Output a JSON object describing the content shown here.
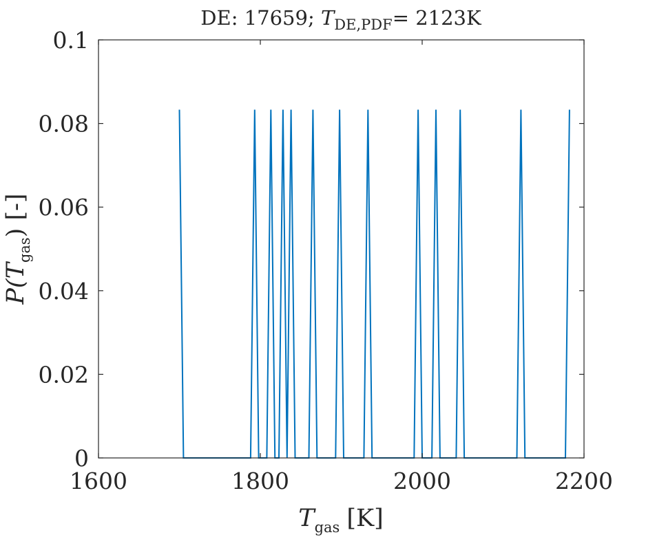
{
  "chart_data": {
    "type": "line",
    "title": {
      "prefix": "DE: 17659; ",
      "var": "T",
      "sub": "DE,PDF",
      "suffix": "= 2123K"
    },
    "xlabel": {
      "var": "T",
      "sub": "gas",
      "unit": "[K]"
    },
    "ylabel": {
      "prefix": "P(",
      "var": "T",
      "sub": "gas",
      "suffix": ") [-]"
    },
    "xlim": [
      1600,
      2200
    ],
    "ylim": [
      0,
      0.1
    ],
    "xticks": [
      1600,
      1800,
      2000,
      2200
    ],
    "xtick_labels": [
      "1600",
      "1800",
      "2000",
      "2200"
    ],
    "yticks": [
      0,
      0.02,
      0.04,
      0.06,
      0.08,
      0.1
    ],
    "ytick_labels": [
      "0",
      "0.02",
      "0.04",
      "0.06",
      "0.08",
      "0.1"
    ],
    "grid": false,
    "line_color": "#0072BD",
    "series": [
      {
        "x": [
          1700,
          1705,
          1788,
          1793,
          1798,
          1803,
          1808,
          1813,
          1818,
          1823,
          1828,
          1833,
          1838,
          1843,
          1860,
          1865,
          1870,
          1893,
          1898,
          1903,
          1928,
          1933,
          1938,
          1990,
          1995,
          2000,
          2012,
          2017,
          2022,
          2042,
          2047,
          2052,
          2117,
          2122,
          2127,
          2177,
          2182
        ],
        "y": [
          0.0833,
          0,
          0,
          0.0833,
          0,
          0,
          0,
          0.0833,
          0,
          0,
          0.0833,
          0,
          0.0833,
          0,
          0,
          0.0833,
          0,
          0,
          0.0833,
          0,
          0,
          0.0833,
          0,
          0,
          0.0833,
          0,
          0,
          0.0833,
          0,
          0,
          0.0833,
          0,
          0,
          0.0833,
          0,
          0,
          0.0833
        ]
      }
    ]
  }
}
